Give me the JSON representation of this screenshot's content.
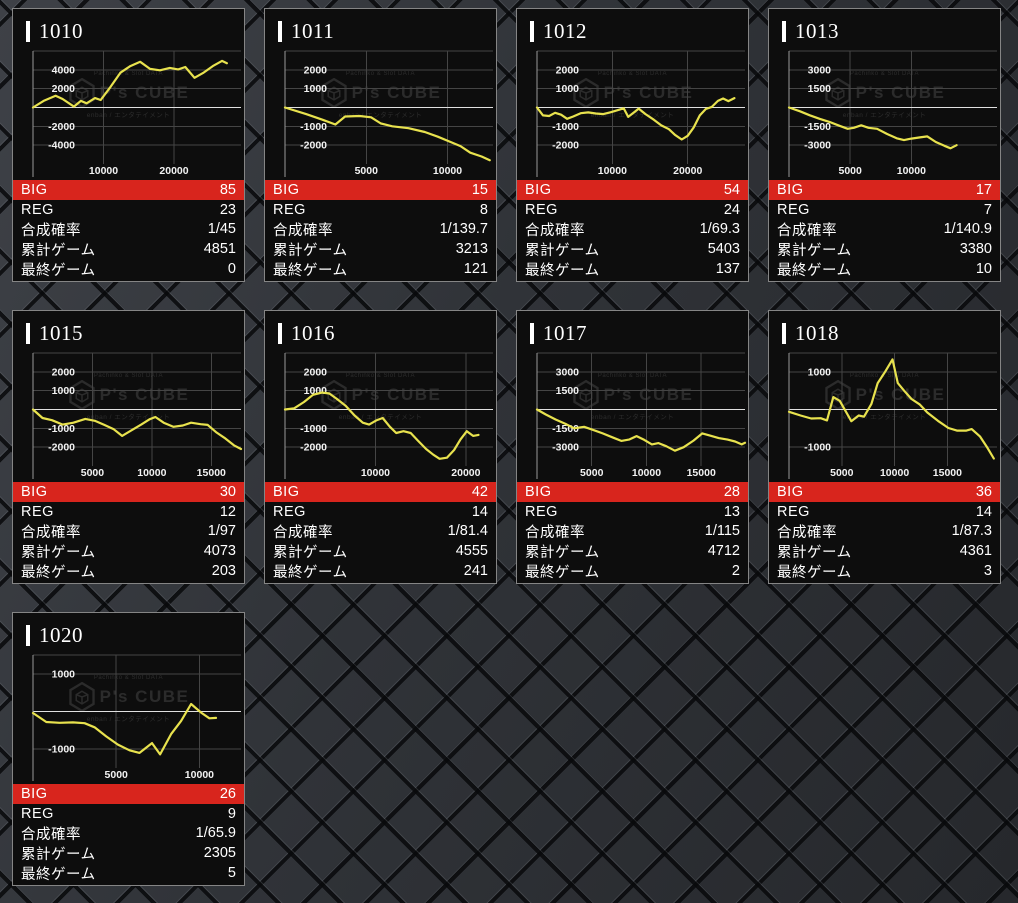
{
  "watermark": {
    "line1": "Pachinko & Slot DATA",
    "brand": "P's CUBE",
    "line2": "enban / エンタテイメント"
  },
  "row_labels": {
    "big": "BIG",
    "reg": "REG",
    "rate": "合成確率",
    "total": "累計ゲーム",
    "last": "最終ゲーム"
  },
  "colors": {
    "accent_red": "#d8251d",
    "line_yellow": "#e8e24e",
    "grid_gray": "#454545",
    "zero_line": "#e0e0e0",
    "axis_gray": "#999999",
    "card_bg": "#0d0d0d",
    "page_bg": "#33363b"
  },
  "cards": [
    {
      "id": "1010",
      "big": "85",
      "reg": "23",
      "rate": "1/45",
      "total": "4851",
      "last": "0",
      "chart": {
        "type": "line",
        "ylim": [
          -6000,
          6000
        ],
        "yticks": [
          4000,
          2000,
          -2000,
          -4000
        ],
        "xticks": [
          10000,
          20000
        ],
        "xmax": 29500,
        "points": [
          [
            0,
            0
          ],
          [
            1500,
            700
          ],
          [
            3200,
            1250
          ],
          [
            4200,
            900
          ],
          [
            5800,
            100
          ],
          [
            6800,
            700
          ],
          [
            7600,
            450
          ],
          [
            8800,
            1000
          ],
          [
            9600,
            800
          ],
          [
            11000,
            2200
          ],
          [
            12400,
            3700
          ],
          [
            13800,
            4400
          ],
          [
            15200,
            4850
          ],
          [
            16600,
            4100
          ],
          [
            18000,
            3950
          ],
          [
            19400,
            4200
          ],
          [
            20600,
            4050
          ],
          [
            21600,
            4300
          ],
          [
            22900,
            3150
          ],
          [
            24100,
            3650
          ],
          [
            25500,
            4400
          ],
          [
            26800,
            4950
          ],
          [
            27500,
            4700
          ]
        ]
      }
    },
    {
      "id": "1011",
      "big": "15",
      "reg": "8",
      "rate": "1/139.7",
      "total": "3213",
      "last": "121",
      "chart": {
        "type": "line",
        "ylim": [
          -3000,
          3000
        ],
        "yticks": [
          2000,
          1000,
          -1000,
          -2000
        ],
        "xticks": [
          5000,
          10000
        ],
        "xmax": 12800,
        "points": [
          [
            0,
            0
          ],
          [
            1300,
            -350
          ],
          [
            2300,
            -650
          ],
          [
            3100,
            -900
          ],
          [
            3700,
            -480
          ],
          [
            4600,
            -450
          ],
          [
            5300,
            -520
          ],
          [
            5900,
            -850
          ],
          [
            6600,
            -1000
          ],
          [
            7600,
            -1100
          ],
          [
            8600,
            -1300
          ],
          [
            9400,
            -1550
          ],
          [
            10100,
            -1800
          ],
          [
            10800,
            -2050
          ],
          [
            11400,
            -2400
          ],
          [
            12100,
            -2600
          ],
          [
            12600,
            -2800
          ]
        ]
      }
    },
    {
      "id": "1012",
      "big": "54",
      "reg": "24",
      "rate": "1/69.3",
      "total": "5403",
      "last": "137",
      "chart": {
        "type": "line",
        "ylim": [
          -3000,
          3000
        ],
        "yticks": [
          2000,
          1000,
          -1000,
          -2000
        ],
        "xticks": [
          10000,
          20000
        ],
        "xmax": 27600,
        "points": [
          [
            0,
            0
          ],
          [
            800,
            -420
          ],
          [
            1600,
            -450
          ],
          [
            2400,
            -280
          ],
          [
            3200,
            -380
          ],
          [
            4000,
            -600
          ],
          [
            4800,
            -480
          ],
          [
            5800,
            -300
          ],
          [
            6800,
            -260
          ],
          [
            7800,
            -320
          ],
          [
            8800,
            -350
          ],
          [
            9800,
            -250
          ],
          [
            10800,
            -130
          ],
          [
            11500,
            -40
          ],
          [
            12100,
            -500
          ],
          [
            12800,
            -280
          ],
          [
            13500,
            -60
          ],
          [
            14400,
            -350
          ],
          [
            15500,
            -650
          ],
          [
            16500,
            -950
          ],
          [
            17500,
            -1150
          ],
          [
            18300,
            -1450
          ],
          [
            19200,
            -1700
          ],
          [
            20000,
            -1500
          ],
          [
            20800,
            -1050
          ],
          [
            21600,
            -420
          ],
          [
            22400,
            -80
          ],
          [
            23200,
            30
          ],
          [
            24000,
            350
          ],
          [
            24700,
            480
          ],
          [
            25400,
            340
          ],
          [
            26200,
            500
          ]
        ]
      }
    },
    {
      "id": "1013",
      "big": "17",
      "reg": "7",
      "rate": "1/140.9",
      "total": "3380",
      "last": "10",
      "chart": {
        "type": "line",
        "ylim": [
          -4500,
          4500
        ],
        "yticks": [
          3000,
          1500,
          -1500,
          -3000
        ],
        "xticks": [
          5000,
          10000
        ],
        "xmax": 17000,
        "points": [
          [
            0,
            0
          ],
          [
            900,
            -300
          ],
          [
            1700,
            -620
          ],
          [
            2500,
            -900
          ],
          [
            3300,
            -1150
          ],
          [
            4100,
            -1450
          ],
          [
            4800,
            -1700
          ],
          [
            5300,
            -1620
          ],
          [
            5900,
            -1420
          ],
          [
            6500,
            -1620
          ],
          [
            7200,
            -1700
          ],
          [
            8000,
            -2100
          ],
          [
            8800,
            -2450
          ],
          [
            9400,
            -2600
          ],
          [
            10000,
            -2480
          ],
          [
            10700,
            -2380
          ],
          [
            11300,
            -2300
          ],
          [
            12000,
            -2750
          ],
          [
            12700,
            -3050
          ],
          [
            13200,
            -3250
          ],
          [
            13700,
            -3000
          ]
        ]
      }
    },
    {
      "id": "1015",
      "big": "30",
      "reg": "12",
      "rate": "1/97",
      "total": "4073",
      "last": "203",
      "chart": {
        "type": "line",
        "ylim": [
          -3000,
          3000
        ],
        "yticks": [
          2000,
          1000,
          -1000,
          -2000
        ],
        "xticks": [
          5000,
          10000,
          15000
        ],
        "xmax": 17500,
        "points": [
          [
            0,
            0
          ],
          [
            800,
            -450
          ],
          [
            1600,
            -570
          ],
          [
            2500,
            -800
          ],
          [
            3400,
            -700
          ],
          [
            4400,
            -500
          ],
          [
            5200,
            -600
          ],
          [
            6000,
            -820
          ],
          [
            6800,
            -1050
          ],
          [
            7500,
            -1400
          ],
          [
            8300,
            -1100
          ],
          [
            9100,
            -800
          ],
          [
            9800,
            -520
          ],
          [
            10300,
            -400
          ],
          [
            11000,
            -700
          ],
          [
            11800,
            -920
          ],
          [
            12600,
            -850
          ],
          [
            13300,
            -700
          ],
          [
            14100,
            -780
          ],
          [
            14700,
            -820
          ],
          [
            15400,
            -1200
          ],
          [
            16100,
            -1500
          ],
          [
            16900,
            -1900
          ],
          [
            17500,
            -2100
          ]
        ]
      }
    },
    {
      "id": "1016",
      "big": "42",
      "reg": "14",
      "rate": "1/81.4",
      "total": "4555",
      "last": "241",
      "chart": {
        "type": "line",
        "ylim": [
          -3000,
          3000
        ],
        "yticks": [
          2000,
          1000,
          -1000,
          -2000
        ],
        "xticks": [
          10000,
          20000
        ],
        "xmax": 23000,
        "points": [
          [
            0,
            0
          ],
          [
            1000,
            60
          ],
          [
            2100,
            400
          ],
          [
            3100,
            780
          ],
          [
            4100,
            900
          ],
          [
            4900,
            850
          ],
          [
            5700,
            580
          ],
          [
            6700,
            200
          ],
          [
            7700,
            -320
          ],
          [
            8600,
            -700
          ],
          [
            9300,
            -800
          ],
          [
            10100,
            -580
          ],
          [
            10800,
            -450
          ],
          [
            11600,
            -920
          ],
          [
            12300,
            -1250
          ],
          [
            13100,
            -1150
          ],
          [
            13900,
            -1250
          ],
          [
            14700,
            -1650
          ],
          [
            15600,
            -2100
          ],
          [
            16400,
            -2400
          ],
          [
            17100,
            -2620
          ],
          [
            17900,
            -2560
          ],
          [
            18700,
            -2150
          ],
          [
            19400,
            -1600
          ],
          [
            20100,
            -1150
          ],
          [
            20800,
            -1400
          ],
          [
            21400,
            -1350
          ]
        ]
      }
    },
    {
      "id": "1017",
      "big": "28",
      "reg": "13",
      "rate": "1/115",
      "total": "4712",
      "last": "2",
      "chart": {
        "type": "line",
        "ylim": [
          -4500,
          4500
        ],
        "yticks": [
          3000,
          1500,
          -1500,
          -3000
        ],
        "xticks": [
          5000,
          10000,
          15000
        ],
        "xmax": 19000,
        "points": [
          [
            0,
            0
          ],
          [
            800,
            -400
          ],
          [
            1700,
            -800
          ],
          [
            2600,
            -1150
          ],
          [
            3400,
            -1500
          ],
          [
            4300,
            -1380
          ],
          [
            5100,
            -1620
          ],
          [
            6000,
            -1900
          ],
          [
            7000,
            -2250
          ],
          [
            7700,
            -2500
          ],
          [
            8400,
            -2400
          ],
          [
            9100,
            -2120
          ],
          [
            9800,
            -2420
          ],
          [
            10500,
            -2780
          ],
          [
            11100,
            -2680
          ],
          [
            11800,
            -2920
          ],
          [
            12600,
            -3280
          ],
          [
            13400,
            -3000
          ],
          [
            14300,
            -2480
          ],
          [
            15100,
            -1900
          ],
          [
            15800,
            -2080
          ],
          [
            16600,
            -2280
          ],
          [
            17400,
            -2400
          ],
          [
            18100,
            -2550
          ],
          [
            18700,
            -2780
          ],
          [
            19000,
            -2650
          ]
        ]
      }
    },
    {
      "id": "1018",
      "big": "36",
      "reg": "14",
      "rate": "1/87.3",
      "total": "4361",
      "last": "3",
      "chart": {
        "type": "line",
        "ylim": [
          -1500,
          1500
        ],
        "yticks": [
          1000,
          -1000
        ],
        "xticks": [
          5000,
          10000,
          15000
        ],
        "xmax": 19700,
        "points": [
          [
            0,
            -60
          ],
          [
            1100,
            -160
          ],
          [
            2100,
            -240
          ],
          [
            3000,
            -230
          ],
          [
            3600,
            -290
          ],
          [
            4200,
            330
          ],
          [
            4800,
            230
          ],
          [
            5400,
            -60
          ],
          [
            5900,
            -310
          ],
          [
            6600,
            -160
          ],
          [
            7100,
            -190
          ],
          [
            7800,
            150
          ],
          [
            8400,
            700
          ],
          [
            9100,
            1000
          ],
          [
            9800,
            1330
          ],
          [
            10300,
            700
          ],
          [
            10900,
            500
          ],
          [
            11600,
            280
          ],
          [
            12400,
            130
          ],
          [
            13100,
            -80
          ],
          [
            14100,
            -300
          ],
          [
            15100,
            -490
          ],
          [
            15900,
            -560
          ],
          [
            16800,
            -560
          ],
          [
            17300,
            -520
          ],
          [
            18100,
            -720
          ],
          [
            18800,
            -1020
          ],
          [
            19400,
            -1300
          ]
        ]
      }
    },
    {
      "id": "1020",
      "big": "26",
      "reg": "9",
      "rate": "1/65.9",
      "total": "2305",
      "last": "5",
      "chart": {
        "type": "line",
        "ylim": [
          -1500,
          1500
        ],
        "yticks": [
          1000,
          -1000
        ],
        "xticks": [
          5000,
          10000
        ],
        "xmax": 12500,
        "points": [
          [
            0,
            -40
          ],
          [
            800,
            -280
          ],
          [
            1600,
            -300
          ],
          [
            2400,
            -290
          ],
          [
            3100,
            -310
          ],
          [
            3700,
            -420
          ],
          [
            4400,
            -660
          ],
          [
            5100,
            -880
          ],
          [
            5800,
            -1030
          ],
          [
            6400,
            -1100
          ],
          [
            7150,
            -840
          ],
          [
            7640,
            -1140
          ],
          [
            8300,
            -600
          ],
          [
            8900,
            -250
          ],
          [
            9500,
            200
          ],
          [
            10100,
            -30
          ],
          [
            10600,
            -180
          ],
          [
            11000,
            -170
          ]
        ]
      }
    }
  ]
}
